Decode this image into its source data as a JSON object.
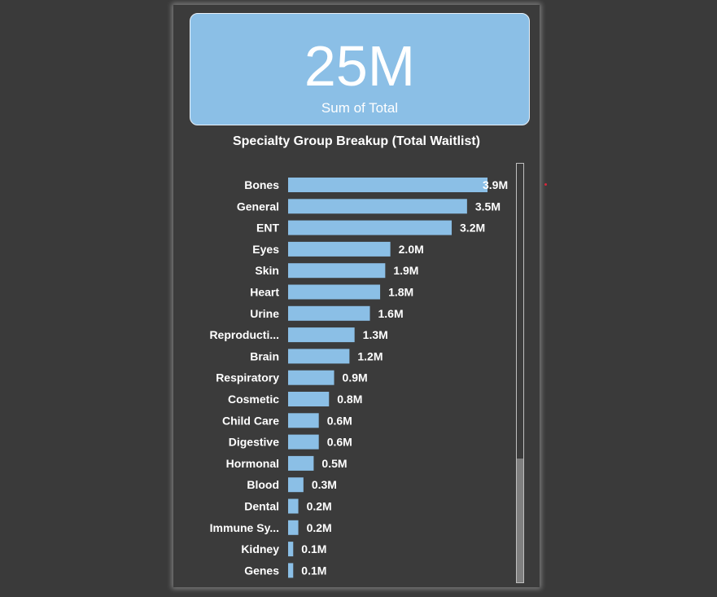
{
  "card": {
    "value": "25M",
    "label": "Sum of Total"
  },
  "chart_data": {
    "type": "bar",
    "orientation": "horizontal",
    "title": "Specialty Group Breakup (Total Waitlist)",
    "categories": [
      "Bones",
      "General",
      "ENT",
      "Eyes",
      "Skin",
      "Heart",
      "Urine",
      "Reproducti...",
      "Brain",
      "Respiratory",
      "Cosmetic",
      "Child Care",
      "Digestive",
      "Hormonal",
      "Blood",
      "Dental",
      "Immune Sy...",
      "Kidney",
      "Genes"
    ],
    "values": [
      3.9,
      3.5,
      3.2,
      2.0,
      1.9,
      1.8,
      1.6,
      1.3,
      1.2,
      0.9,
      0.8,
      0.6,
      0.6,
      0.5,
      0.3,
      0.2,
      0.2,
      0.1,
      0.1
    ],
    "data_labels": [
      "3.9M",
      "3.5M",
      "3.2M",
      "2.0M",
      "1.9M",
      "1.8M",
      "1.6M",
      "1.3M",
      "1.2M",
      "0.9M",
      "0.8M",
      "0.6M",
      "0.6M",
      "0.5M",
      "0.3M",
      "0.2M",
      "0.2M",
      "0.1M",
      "0.1M"
    ],
    "unit": "M",
    "xlim": [
      0,
      3.9
    ],
    "bar_color": "#8bbfe6",
    "grid": false
  },
  "colors": {
    "background": "#3a3a3a",
    "panel": "#3b3b3b",
    "card": "#8bbfe6",
    "text": "#ffffff"
  }
}
